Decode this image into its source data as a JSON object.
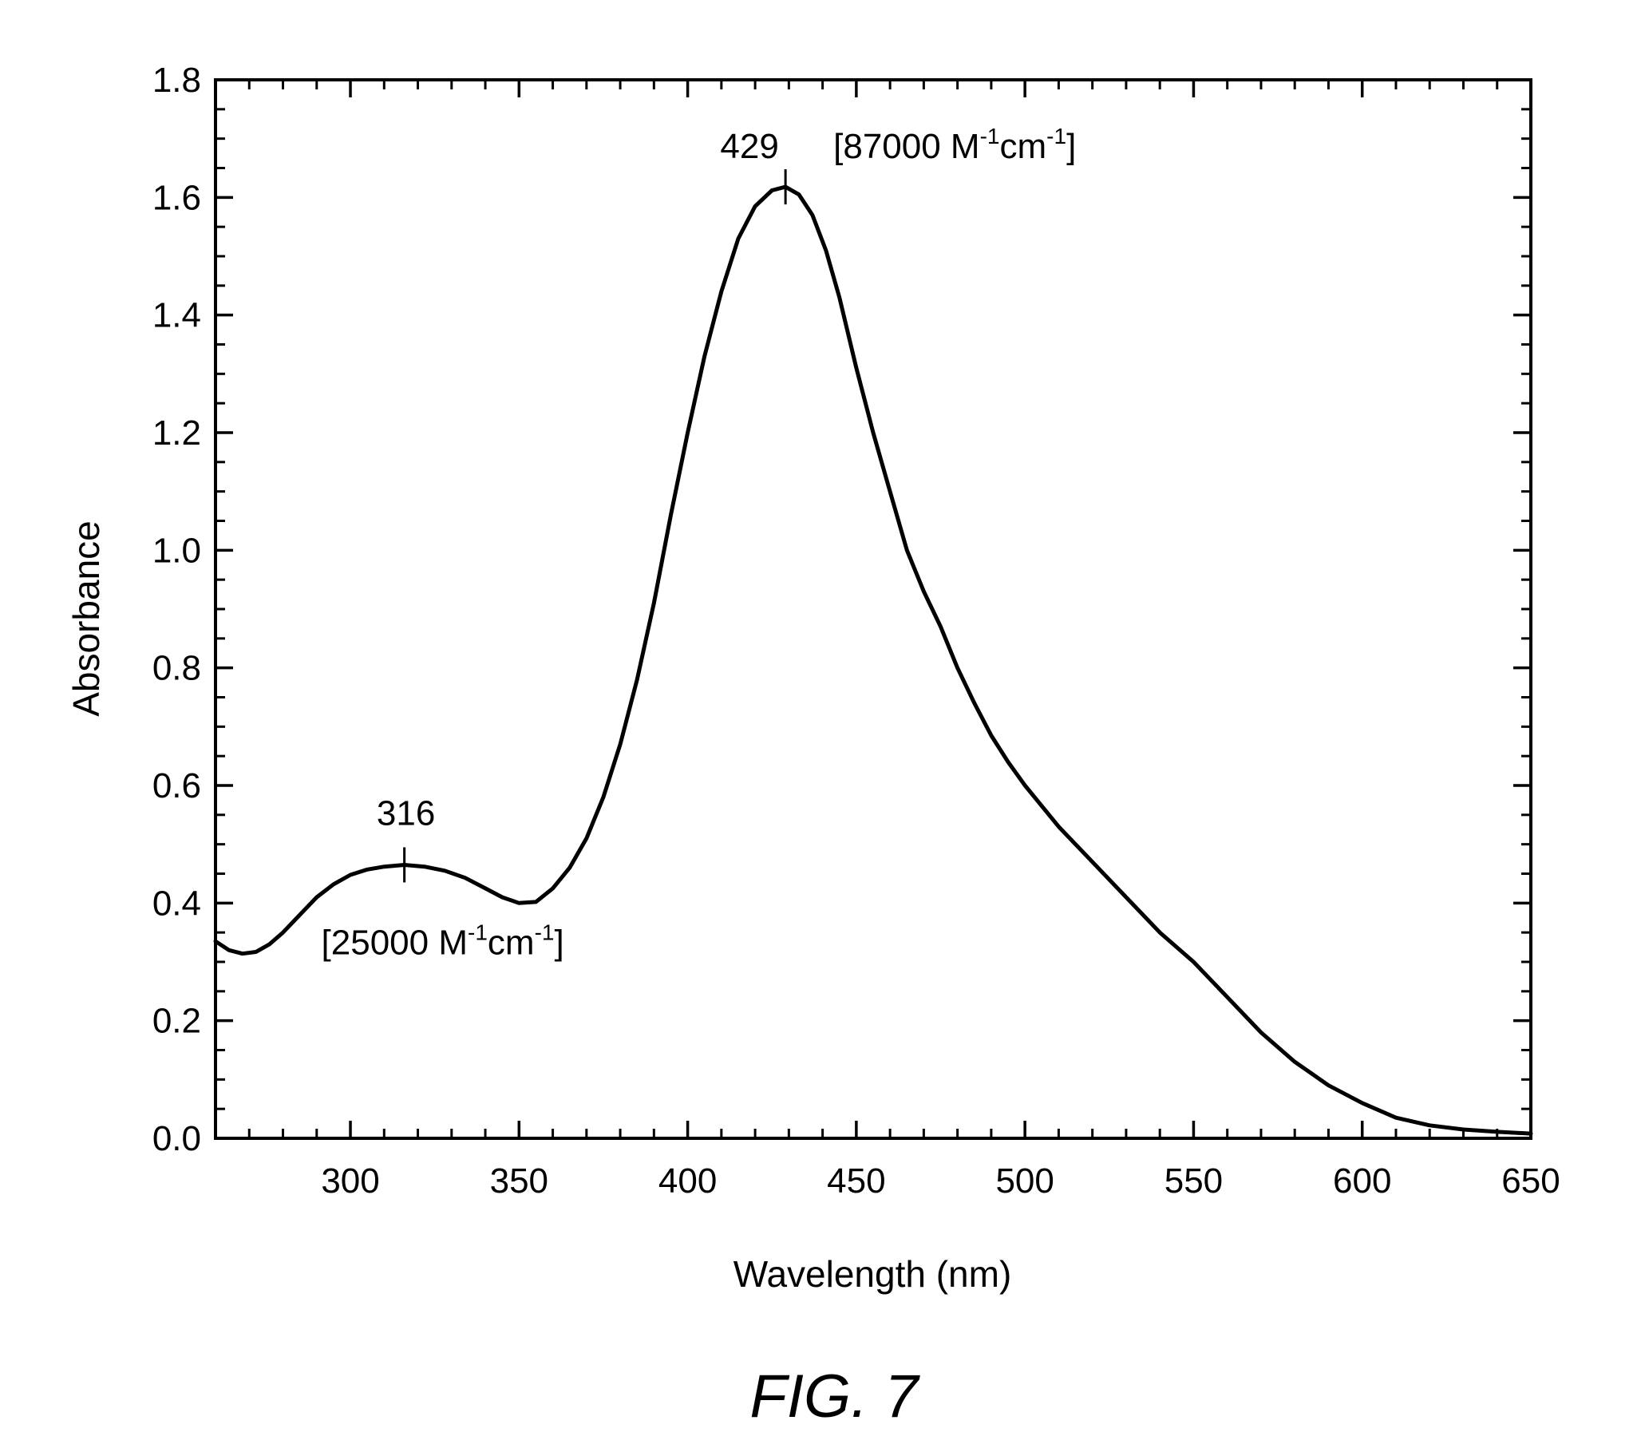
{
  "figure": {
    "caption": "FIG. 7"
  },
  "chart_data": {
    "type": "line",
    "title": "",
    "xlabel": "Wavelength (nm)",
    "ylabel": "Absorbance",
    "xlim": [
      260,
      650
    ],
    "ylim": [
      0.0,
      1.8
    ],
    "x_major_ticks": [
      300,
      350,
      400,
      450,
      500,
      550,
      600,
      650
    ],
    "x_tick_labels": [
      "300",
      "350",
      "400",
      "450",
      "500",
      "550",
      "600",
      "650"
    ],
    "x_minor_step": 10,
    "y_major_ticks": [
      0.0,
      0.2,
      0.4,
      0.6,
      0.8,
      1.0,
      1.2,
      1.4,
      1.6,
      1.8
    ],
    "y_tick_labels": [
      "0.0",
      "0.2",
      "0.4",
      "0.6",
      "0.8",
      "1.0",
      "1.2",
      "1.4",
      "1.6",
      "1.8"
    ],
    "y_minor_step": 0.05,
    "grid": false,
    "legend": "none",
    "series": [
      {
        "color": "#000000",
        "x": [
          260,
          264,
          268,
          272,
          276,
          280,
          285,
          290,
          295,
          300,
          305,
          310,
          316,
          322,
          328,
          334,
          340,
          345,
          350,
          355,
          360,
          365,
          370,
          375,
          380,
          385,
          390,
          395,
          400,
          405,
          410,
          415,
          420,
          425,
          429,
          433,
          437,
          441,
          445,
          450,
          455,
          460,
          465,
          470,
          475,
          480,
          485,
          490,
          495,
          500,
          510,
          520,
          530,
          540,
          550,
          560,
          570,
          580,
          590,
          600,
          610,
          620,
          630,
          640,
          650
        ],
        "y": [
          0.335,
          0.32,
          0.314,
          0.317,
          0.33,
          0.35,
          0.38,
          0.41,
          0.432,
          0.448,
          0.457,
          0.462,
          0.465,
          0.462,
          0.455,
          0.443,
          0.425,
          0.41,
          0.4,
          0.402,
          0.425,
          0.46,
          0.51,
          0.58,
          0.67,
          0.78,
          0.91,
          1.06,
          1.2,
          1.33,
          1.44,
          1.53,
          1.585,
          1.612,
          1.618,
          1.605,
          1.57,
          1.51,
          1.43,
          1.31,
          1.2,
          1.1,
          1.0,
          0.93,
          0.87,
          0.8,
          0.74,
          0.685,
          0.64,
          0.6,
          0.53,
          0.47,
          0.41,
          0.35,
          0.3,
          0.24,
          0.18,
          0.13,
          0.09,
          0.06,
          0.035,
          0.022,
          0.015,
          0.011,
          0.008
        ]
      }
    ],
    "annotations": [
      {
        "x": 316,
        "y": 0.465,
        "peak_label": "316",
        "coef_prefix": "[25000 M",
        "coef_sup1": "-1",
        "coef_mid": "cm",
        "coef_sup2": "-1",
        "coef_suffix": "]"
      },
      {
        "x": 429,
        "y": 1.618,
        "peak_label": "429",
        "coef_prefix": "[87000 M",
        "coef_sup1": "-1",
        "coef_mid": "cm",
        "coef_sup2": "-1",
        "coef_suffix": "]"
      }
    ]
  }
}
